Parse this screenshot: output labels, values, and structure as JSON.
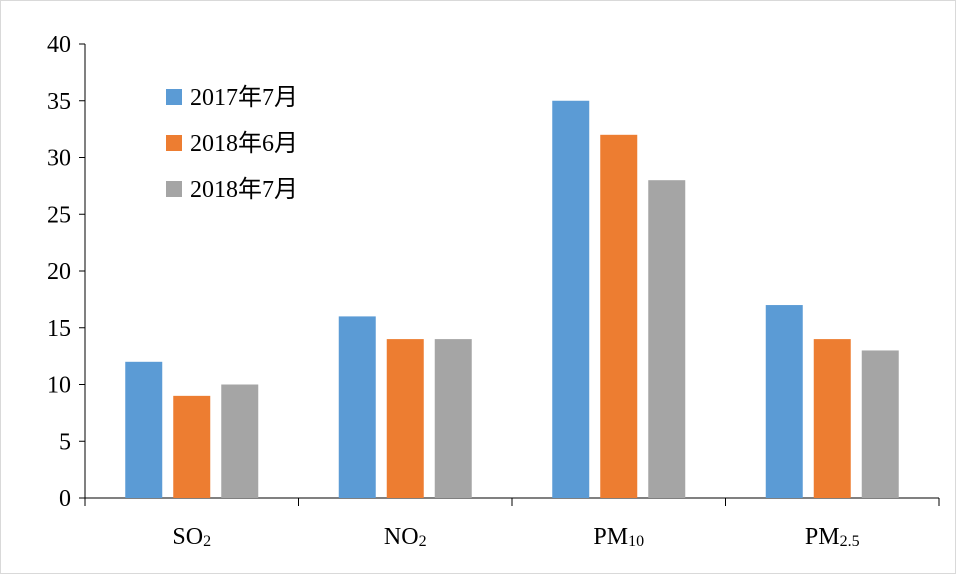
{
  "chart_data": {
    "type": "bar",
    "title": "",
    "xlabel": "",
    "ylabel": "",
    "categories": [
      "SO",
      "NO",
      "PM",
      "PM"
    ],
    "category_subscripts": [
      "2",
      "2",
      "10",
      "2.5"
    ],
    "series": [
      {
        "name": "2017年7月",
        "color": "#5b9bd5",
        "values": [
          12,
          16,
          35,
          17
        ]
      },
      {
        "name": "2018年6月",
        "color": "#ed7d31",
        "values": [
          9,
          14,
          32,
          14
        ]
      },
      {
        "name": "2018年7月",
        "color": "#a5a5a5",
        "values": [
          10,
          14,
          28,
          13
        ]
      }
    ],
    "ylim": [
      0,
      40
    ],
    "yticks": [
      "0",
      "5",
      "10",
      "15",
      "20",
      "25",
      "30",
      "35",
      "40"
    ],
    "grid": false,
    "legend_position": "top-left"
  }
}
